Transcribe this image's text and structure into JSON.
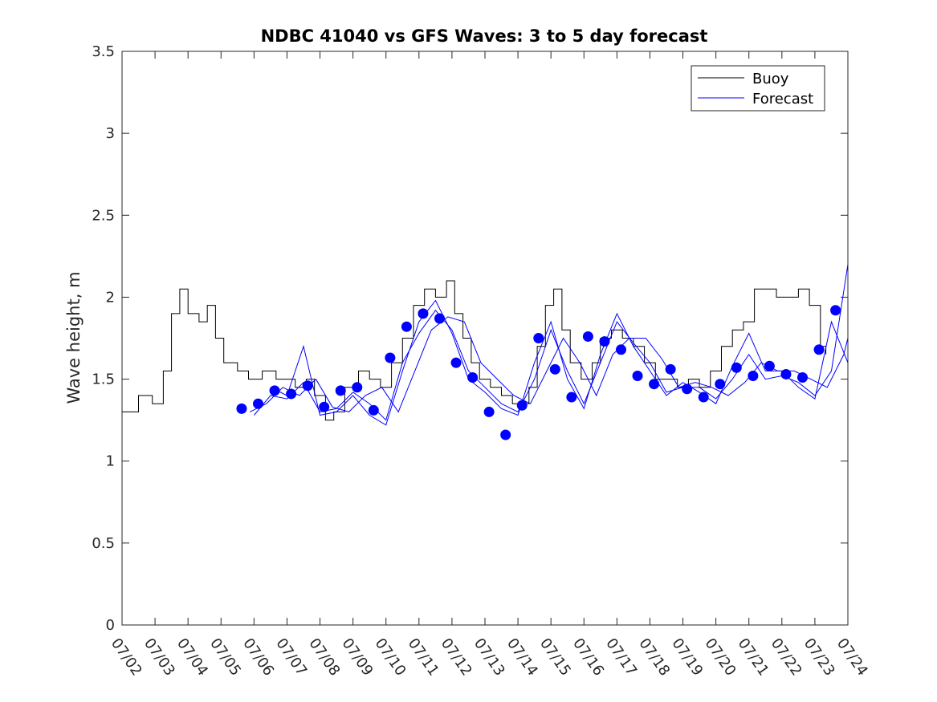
{
  "chart_data": {
    "type": "line",
    "title": "NDBC 41040 vs GFS Waves: 3 to 5 day forecast",
    "xlabel": "",
    "ylabel": "Wave height, m",
    "ylim": [
      0,
      3.5
    ],
    "yticks": [
      "0",
      "0.5",
      "1",
      "1.5",
      "2",
      "2.5",
      "3",
      "3.5"
    ],
    "xlim": [
      "07/02",
      "07/24"
    ],
    "xticks": [
      "07/02",
      "07/03",
      "07/04",
      "07/05",
      "07/06",
      "07/07",
      "07/08",
      "07/09",
      "07/10",
      "07/11",
      "07/12",
      "07/13",
      "07/14",
      "07/15",
      "07/16",
      "07/17",
      "07/18",
      "07/19",
      "07/20",
      "07/21",
      "07/22",
      "07/23",
      "07/24"
    ],
    "grid": false,
    "legend_position": "top-right",
    "legend": [
      "Buoy",
      "Forecast"
    ],
    "colors": {
      "buoy": "#000000",
      "forecast": "#0000ff",
      "points": "#0000ff"
    },
    "series": [
      {
        "name": "Buoy",
        "x": [
          "07/02 00:00",
          "07/02 12:00",
          "07/02 22:00",
          "07/03 06:00",
          "07/03 12:00",
          "07/03 18:00",
          "07/04 00:00",
          "07/04 08:00",
          "07/04 14:00",
          "07/04 20:00",
          "07/05 02:00",
          "07/05 12:00",
          "07/05 20:00",
          "07/06 06:00",
          "07/06 16:00",
          "07/07 00:00",
          "07/07 06:00",
          "07/07 14:00",
          "07/07 20:00",
          "07/08 04:00",
          "07/08 10:00",
          "07/08 18:00",
          "07/09 04:00",
          "07/09 12:00",
          "07/09 20:00",
          "07/10 04:00",
          "07/10 12:00",
          "07/10 20:00",
          "07/11 04:00",
          "07/11 12:00",
          "07/11 20:00",
          "07/12 02:00",
          "07/12 08:00",
          "07/12 14:00",
          "07/12 20:00",
          "07/13 04:00",
          "07/13 12:00",
          "07/13 20:00",
          "07/14 02:00",
          "07/14 08:00",
          "07/14 14:00",
          "07/14 20:00",
          "07/15 02:00",
          "07/15 08:00",
          "07/15 14:00",
          "07/15 22:00",
          "07/16 06:00",
          "07/16 12:00",
          "07/16 20:00",
          "07/17 04:00",
          "07/17 12:00",
          "07/17 20:00",
          "07/18 04:00",
          "07/18 12:00",
          "07/18 20:00",
          "07/19 04:00",
          "07/19 12:00",
          "07/19 20:00",
          "07/20 04:00",
          "07/20 12:00",
          "07/20 20:00",
          "07/21 04:00",
          "07/21 12:00",
          "07/21 20:00",
          "07/22 04:00",
          "07/22 12:00",
          "07/22 20:00",
          "07/23 04:00",
          "07/23 08:00"
        ],
        "values": [
          1.3,
          1.4,
          1.35,
          1.55,
          1.9,
          2.05,
          1.9,
          1.85,
          1.95,
          1.75,
          1.6,
          1.55,
          1.5,
          1.55,
          1.5,
          1.5,
          1.45,
          1.5,
          1.4,
          1.25,
          1.3,
          1.45,
          1.55,
          1.5,
          1.45,
          1.6,
          1.75,
          1.95,
          2.05,
          2.0,
          2.1,
          1.9,
          1.75,
          1.6,
          1.5,
          1.45,
          1.4,
          1.35,
          1.35,
          1.45,
          1.7,
          1.95,
          2.05,
          1.8,
          1.6,
          1.5,
          1.6,
          1.75,
          1.8,
          1.75,
          1.7,
          1.6,
          1.5,
          1.5,
          1.45,
          1.5,
          1.45,
          1.55,
          1.7,
          1.8,
          1.85,
          2.05,
          2.05,
          2.0,
          2.0,
          2.05,
          1.95,
          1.7,
          1.65
        ]
      },
      {
        "name": "Forecast",
        "runs": [
          {
            "x": [
              "07/05 21:00",
              "07/06 09:00",
              "07/06 21:00",
              "07/07 09:00",
              "07/07 21:00",
              "07/08 09:00",
              "07/08 21:00",
              "07/09 09:00",
              "07/09 21:00",
              "07/10 09:00",
              "07/10 21:00",
              "07/11 09:00",
              "07/11 21:00",
              "07/12 09:00",
              "07/12 21:00",
              "07/13 09:00",
              "07/13 21:00",
              "07/14 09:00",
              "07/14 21:00",
              "07/15 09:00",
              "07/15 21:00",
              "07/16 09:00",
              "07/16 21:00",
              "07/17 09:00",
              "07/17 21:00",
              "07/18 09:00",
              "07/18 21:00",
              "07/19 09:00",
              "07/19 21:00",
              "07/20 09:00",
              "07/20 21:00",
              "07/21 09:00",
              "07/21 21:00",
              "07/22 09:00",
              "07/22 21:00",
              "07/23 09:00",
              "07/23 21:00",
              "07/24 00:00"
            ],
            "values": [
              1.3,
              1.35,
              1.45,
              1.4,
              1.5,
              1.33,
              1.3,
              1.4,
              1.45,
              1.3,
              1.55,
              1.8,
              1.88,
              1.85,
              1.6,
              1.5,
              1.4,
              1.35,
              1.55,
              1.75,
              1.6,
              1.4,
              1.65,
              1.75,
              1.75,
              1.62,
              1.45,
              1.48,
              1.45,
              1.4,
              1.48,
              1.6,
              1.55,
              1.55,
              1.5,
              1.45,
              1.65,
              1.75
            ]
          },
          {
            "x": [
              "07/06 00:00",
              "07/06 12:00",
              "07/07 00:00",
              "07/07 12:00",
              "07/08 00:00",
              "07/08 12:00",
              "07/09 00:00",
              "07/09 12:00",
              "07/10 00:00",
              "07/10 12:00",
              "07/11 00:00",
              "07/11 12:00",
              "07/12 00:00",
              "07/12 12:00",
              "07/13 00:00",
              "07/13 12:00",
              "07/14 00:00",
              "07/14 12:00",
              "07/15 00:00",
              "07/15 12:00",
              "07/16 00:00",
              "07/16 12:00",
              "07/17 00:00",
              "07/17 12:00",
              "07/18 00:00",
              "07/18 12:00",
              "07/19 00:00",
              "07/19 12:00",
              "07/20 00:00",
              "07/20 12:00",
              "07/21 00:00",
              "07/21 12:00",
              "07/22 00:00",
              "07/22 12:00",
              "07/23 00:00",
              "07/23 12:00",
              "07/24 00:00"
            ],
            "values": [
              1.28,
              1.4,
              1.38,
              1.48,
              1.3,
              1.32,
              1.42,
              1.35,
              1.25,
              1.6,
              1.78,
              1.92,
              1.8,
              1.55,
              1.45,
              1.35,
              1.3,
              1.5,
              1.8,
              1.55,
              1.35,
              1.6,
              1.85,
              1.72,
              1.6,
              1.42,
              1.45,
              1.45,
              1.38,
              1.5,
              1.65,
              1.5,
              1.52,
              1.48,
              1.4,
              1.55,
              2.2
            ]
          },
          {
            "x": [
              "07/06 12:00",
              "07/07 00:00",
              "07/07 12:00",
              "07/08 00:00",
              "07/08 12:00",
              "07/09 00:00",
              "07/09 12:00",
              "07/10 00:00",
              "07/10 12:00",
              "07/11 00:00",
              "07/11 12:00",
              "07/12 00:00",
              "07/12 12:00",
              "07/13 00:00",
              "07/13 12:00",
              "07/14 00:00",
              "07/14 12:00",
              "07/15 00:00",
              "07/15 12:00",
              "07/16 00:00",
              "07/16 12:00",
              "07/17 00:00",
              "07/17 12:00",
              "07/18 00:00",
              "07/18 12:00",
              "07/19 00:00",
              "07/19 12:00",
              "07/20 00:00",
              "07/20 12:00",
              "07/21 00:00",
              "07/21 12:00",
              "07/22 00:00",
              "07/22 12:00",
              "07/23 00:00",
              "07/23 12:00",
              "07/24 00:00"
            ],
            "values": [
              1.45,
              1.4,
              1.7,
              1.28,
              1.3,
              1.4,
              1.28,
              1.22,
              1.55,
              1.85,
              1.98,
              1.78,
              1.5,
              1.42,
              1.32,
              1.28,
              1.6,
              1.85,
              1.5,
              1.32,
              1.65,
              1.9,
              1.7,
              1.55,
              1.4,
              1.48,
              1.42,
              1.35,
              1.58,
              1.78,
              1.55,
              1.55,
              1.45,
              1.38,
              1.85,
              1.6
            ]
          }
        ]
      },
      {
        "name": "Forecast points",
        "x": [
          "07/05 15:00",
          "07/06 03:00",
          "07/06 15:00",
          "07/07 03:00",
          "07/07 15:00",
          "07/08 03:00",
          "07/08 15:00",
          "07/09 03:00",
          "07/09 15:00",
          "07/10 03:00",
          "07/10 15:00",
          "07/11 03:00",
          "07/11 15:00",
          "07/12 03:00",
          "07/12 15:00",
          "07/13 03:00",
          "07/13 15:00",
          "07/14 03:00",
          "07/14 15:00",
          "07/15 03:00",
          "07/15 15:00",
          "07/16 03:00",
          "07/16 15:00",
          "07/17 03:00",
          "07/17 15:00",
          "07/18 03:00",
          "07/18 15:00",
          "07/19 03:00",
          "07/19 15:00",
          "07/20 03:00",
          "07/20 15:00",
          "07/21 03:00",
          "07/21 15:00",
          "07/22 03:00",
          "07/22 15:00",
          "07/23 03:00",
          "07/23 15:00"
        ],
        "values": [
          1.32,
          1.35,
          1.43,
          1.41,
          1.46,
          1.33,
          1.43,
          1.45,
          1.31,
          1.63,
          1.82,
          1.9,
          1.87,
          1.6,
          1.51,
          1.3,
          1.16,
          1.34,
          1.75,
          1.56,
          1.39,
          1.76,
          1.73,
          1.68,
          1.52,
          1.47,
          1.56,
          1.44,
          1.39,
          1.47,
          1.57,
          1.52,
          1.58,
          1.53,
          1.51,
          1.68,
          1.92
        ]
      }
    ]
  }
}
